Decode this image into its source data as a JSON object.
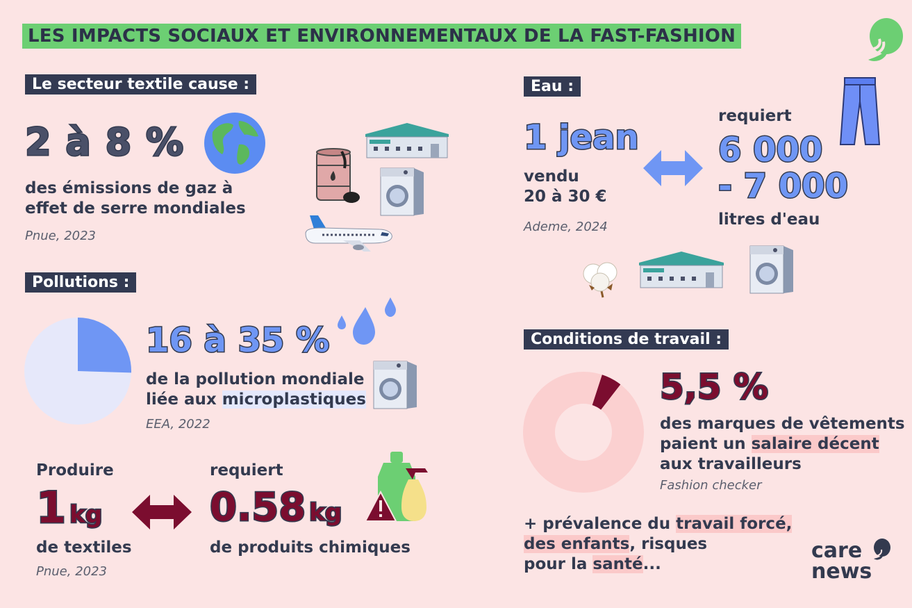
{
  "title": "LES IMPACTS SOCIAUX ET ENVIRONNEMENTAUX DE LA FAST-FASHION",
  "textile": {
    "tag": "Le secteur textile cause :",
    "value": "2 à 8 %",
    "text1": "des émissions de gaz à",
    "text2": "effet de serre mondiales",
    "source": "Pnue, 2023"
  },
  "pollution": {
    "tag": "Pollutions :",
    "value": "16 à 35 %",
    "text1": "de la pollution mondiale",
    "text2_a": "liée aux ",
    "text2_b": "microplastiques",
    "source": "EEA, 2022",
    "pie_share": 0.255
  },
  "chem": {
    "produire": "Produire",
    "one": "1",
    "kg1": "kg",
    "textiles": "de textiles",
    "source": "Pnue, 2023",
    "requiert": "requiert",
    "value": "0.58",
    "kg2": "kg",
    "products": "de produits chimiques"
  },
  "eau": {
    "tag": "Eau :",
    "jean": "1 jean",
    "vendu": "vendu",
    "price": "20 à 30 €",
    "source": "Ademe, 2024",
    "requiert": "requiert",
    "liters1": "6 000",
    "liters2": "- 7 000",
    "litres_label": "litres d'eau"
  },
  "travail": {
    "tag": "Conditions de travail :",
    "value": "5,5 %",
    "text1": "des marques de vêtements",
    "text2_a": "paient un ",
    "text2_b": "salaire décent",
    "text3": "aux travailleurs",
    "source": "Fashion checker",
    "share": 0.055,
    "extra1_a": "+ prévalence du ",
    "extra1_b": "travail forcé,",
    "extra2_a": "des enfants",
    "extra2_b": ", risques",
    "extra3_a": "pour la ",
    "extra3_b": "santé",
    "extra3_c": "..."
  },
  "brand": {
    "line1": "care",
    "line2": "news"
  },
  "colors": {
    "background": "#fce4e4",
    "title_bg": "#6ccf73",
    "tag_bg": "#333a52",
    "blue": "#6f96f4",
    "burgundy": "#7b0d2f",
    "pink_donut": "#fbd0d0"
  }
}
